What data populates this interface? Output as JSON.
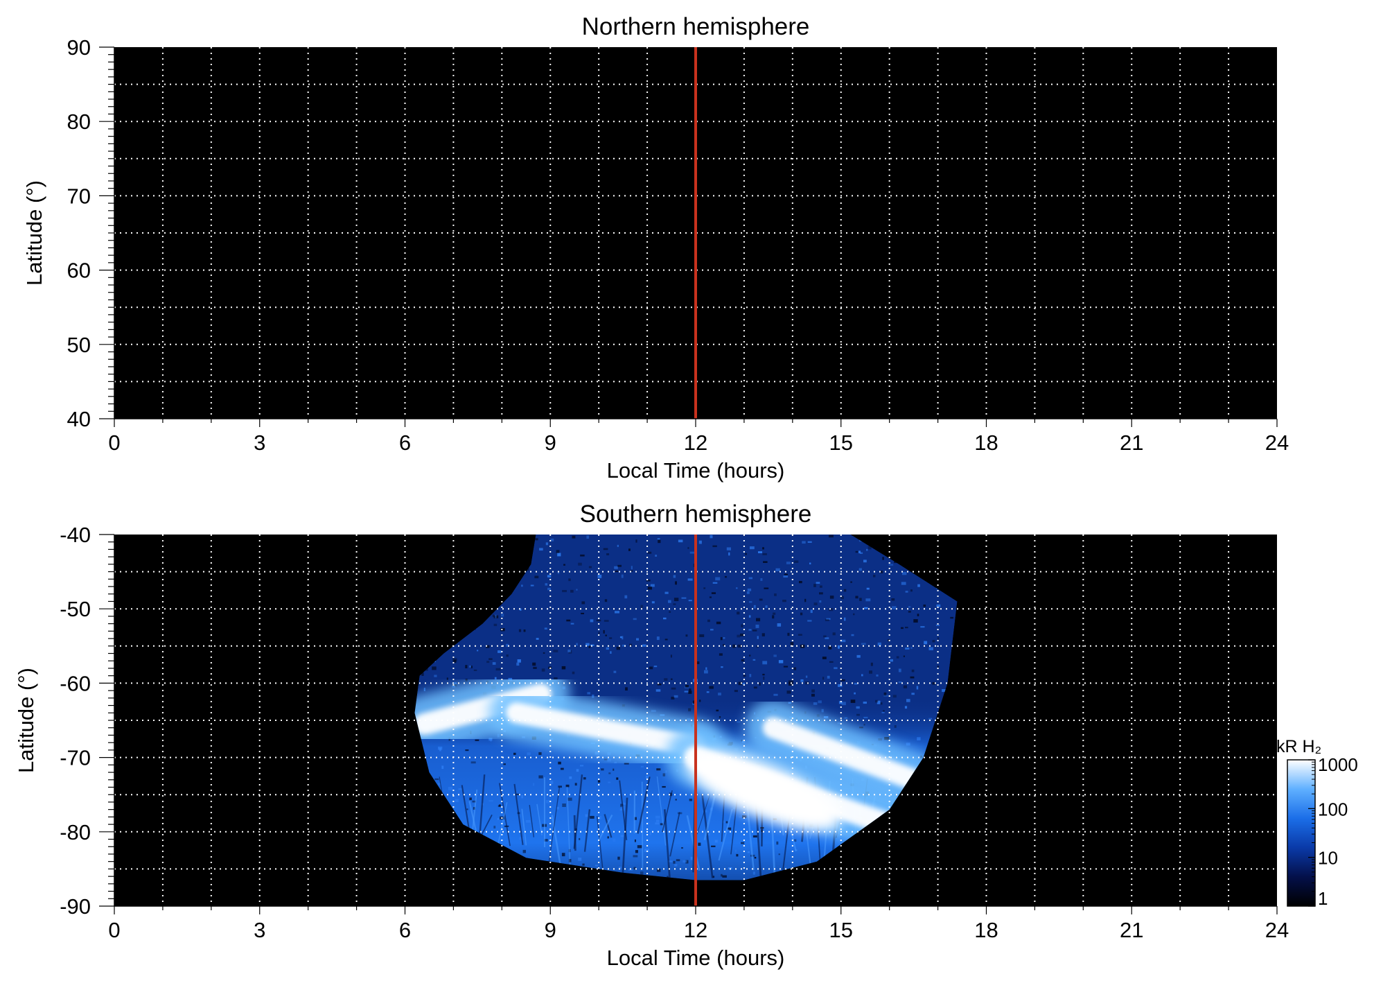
{
  "chart_data": [
    {
      "type": "heatmap",
      "title": "Northern hemisphere",
      "xlabel": "Local Time (hours)",
      "ylabel": "Latitude (°)",
      "xlim": [
        0,
        24
      ],
      "ylim": [
        40,
        90
      ],
      "x_ticks": [
        "0",
        "3",
        "6",
        "9",
        "12",
        "15",
        "18",
        "21",
        "24"
      ],
      "y_ticks": [
        "40",
        "50",
        "60",
        "70",
        "80",
        "90"
      ],
      "grid": "dotted white, every 1 hour and every 5 degrees",
      "background": "#000000",
      "reference_line": {
        "x": 12,
        "color": "#c8321e"
      },
      "emission": "none"
    },
    {
      "type": "heatmap",
      "title": "Southern hemisphere",
      "xlabel": "Local Time (hours)",
      "ylabel": "Latitude (°)",
      "xlim": [
        0,
        24
      ],
      "ylim": [
        -90,
        -40
      ],
      "x_ticks": [
        "0",
        "3",
        "6",
        "9",
        "12",
        "15",
        "18",
        "21",
        "24"
      ],
      "y_ticks": [
        "-40",
        "-50",
        "-60",
        "-70",
        "-80",
        "-90"
      ],
      "grid": "dotted white, every 1 hour and every 5 degrees",
      "background": "#000000",
      "reference_line": {
        "x": 12,
        "color": "#c8321e"
      },
      "coverage_boundary": [
        [
          6.3,
          -59
        ],
        [
          6.8,
          -56
        ],
        [
          7.6,
          -52
        ],
        [
          8.2,
          -48
        ],
        [
          8.6,
          -44
        ],
        [
          8.7,
          -40
        ],
        [
          15.2,
          -40
        ],
        [
          16.2,
          -44
        ],
        [
          17.4,
          -49
        ],
        [
          17.2,
          -60
        ],
        [
          16.7,
          -70
        ],
        [
          16,
          -77
        ],
        [
          14.5,
          -84
        ],
        [
          13,
          -86.5
        ],
        [
          12,
          -86.5
        ],
        [
          10.5,
          -85.5
        ],
        [
          8.5,
          -83.5
        ],
        [
          7.2,
          -79
        ],
        [
          6.5,
          -72
        ],
        [
          6.2,
          -64
        ]
      ],
      "emission_features": [
        {
          "lt_start": 6.4,
          "lat_start": -65.5,
          "lt_end": 8.8,
          "lat_end": -61.5,
          "intensity_kR": 800
        },
        {
          "lt_start": 8.3,
          "lat_start": -64.0,
          "lt_end": 12.0,
          "lat_end": -68.5,
          "intensity_kR": 500
        },
        {
          "lt_start": 12.0,
          "lat_start": -70.0,
          "lt_end": 16.2,
          "lat_end": -79.5,
          "intensity_kR": 1000
        },
        {
          "lt_start": 13.6,
          "lat_start": -66.0,
          "lt_end": 16.5,
          "lat_end": -73.0,
          "intensity_kR": 600
        }
      ],
      "colorbar": {
        "label": "kR H₂",
        "scale": "log",
        "range": [
          1,
          1000
        ],
        "ticks": [
          "1000",
          "100",
          "10",
          "1"
        ],
        "colors": [
          "#000000",
          "#04104a",
          "#0a3aa8",
          "#1b6ee8",
          "#5fb0ff",
          "#ffffff"
        ]
      }
    }
  ]
}
